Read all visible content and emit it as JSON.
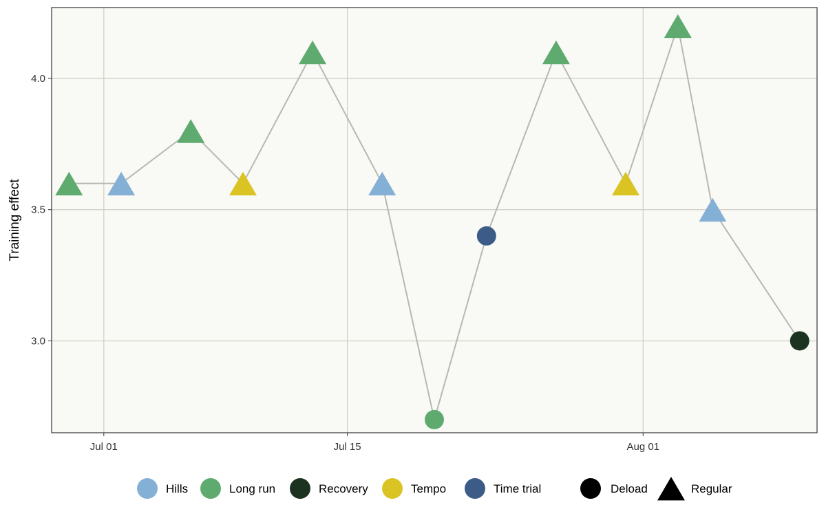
{
  "chart_data": {
    "type": "line",
    "title": "",
    "xlabel": "",
    "ylabel": "Training effect",
    "x_range": [
      "2025-06-28",
      "2025-08-11"
    ],
    "ylim": [
      2.65,
      4.27
    ],
    "x_ticks": [
      {
        "date": "2025-07-01",
        "label": "Jul 01"
      },
      {
        "date": "2025-07-15",
        "label": "Jul 15"
      },
      {
        "date": "2025-08-01",
        "label": "Aug 01"
      }
    ],
    "y_ticks": [
      {
        "value": 3.0,
        "label": "3.0"
      },
      {
        "value": 3.5,
        "label": "3.5"
      },
      {
        "value": 4.0,
        "label": "4.0"
      }
    ],
    "grid": true,
    "line_color": "#b8b8b2",
    "panel_background": "#f9f9f5",
    "points": [
      {
        "date": "2025-06-29",
        "value": 3.6,
        "type": "Long run",
        "week": "Regular"
      },
      {
        "date": "2025-07-02",
        "value": 3.6,
        "type": "Hills",
        "week": "Regular"
      },
      {
        "date": "2025-07-06",
        "value": 3.8,
        "type": "Long run",
        "week": "Regular"
      },
      {
        "date": "2025-07-09",
        "value": 3.6,
        "type": "Tempo",
        "week": "Regular"
      },
      {
        "date": "2025-07-13",
        "value": 4.1,
        "type": "Long run",
        "week": "Regular"
      },
      {
        "date": "2025-07-17",
        "value": 3.6,
        "type": "Hills",
        "week": "Regular"
      },
      {
        "date": "2025-07-20",
        "value": 2.7,
        "type": "Long run",
        "week": "Deload"
      },
      {
        "date": "2025-07-23",
        "value": 3.4,
        "type": "Time trial",
        "week": "Deload"
      },
      {
        "date": "2025-07-27",
        "value": 4.1,
        "type": "Long run",
        "week": "Regular"
      },
      {
        "date": "2025-07-31",
        "value": 3.6,
        "type": "Tempo",
        "week": "Regular"
      },
      {
        "date": "2025-08-03",
        "value": 4.2,
        "type": "Long run",
        "week": "Regular"
      },
      {
        "date": "2025-08-05",
        "value": 3.5,
        "type": "Hills",
        "week": "Regular"
      },
      {
        "date": "2025-08-10",
        "value": 3.0,
        "type": "Recovery",
        "week": "Deload"
      }
    ],
    "color_legend": [
      {
        "label": "Hills",
        "color": "#85b0d5"
      },
      {
        "label": "Long run",
        "color": "#5fab6f"
      },
      {
        "label": "Recovery",
        "color": "#1d3322"
      },
      {
        "label": "Tempo",
        "color": "#d9c424"
      },
      {
        "label": "Time trial",
        "color": "#3d5b87"
      }
    ],
    "shape_legend": [
      {
        "label": "Deload",
        "shape": "circle"
      },
      {
        "label": "Regular",
        "shape": "triangle"
      }
    ],
    "legend_position": "bottom"
  }
}
